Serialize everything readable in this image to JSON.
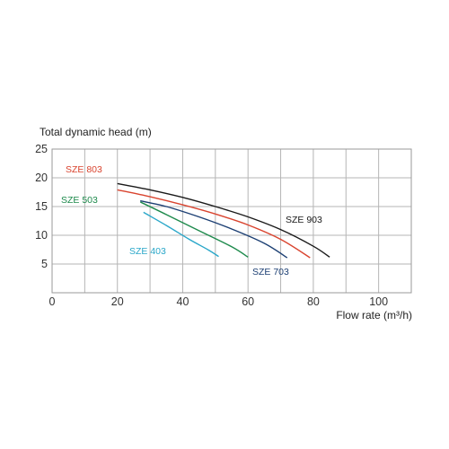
{
  "chart_data": {
    "type": "line",
    "ylabel": "Total dynamic head (m)",
    "xlabel": "Flow rate (m³/h)",
    "xlim": [
      0,
      110
    ],
    "ylim": [
      0,
      25
    ],
    "x_ticks": [
      0,
      20,
      40,
      60,
      80,
      100
    ],
    "y_ticks": [
      5,
      10,
      15,
      20,
      25
    ],
    "grid": true,
    "series": [
      {
        "name": "SZE 903",
        "color": "#1a1a1a",
        "points": [
          [
            20,
            19
          ],
          [
            30,
            17.9
          ],
          [
            40,
            16.6
          ],
          [
            50,
            15
          ],
          [
            60,
            13.2
          ],
          [
            70,
            11
          ],
          [
            80,
            8.1
          ],
          [
            85,
            6.2
          ]
        ]
      },
      {
        "name": "SZE 803",
        "color": "#d9442f",
        "points": [
          [
            20,
            17.9
          ],
          [
            30,
            16.7
          ],
          [
            40,
            15.3
          ],
          [
            50,
            13.7
          ],
          [
            60,
            11.8
          ],
          [
            70,
            9.3
          ],
          [
            79,
            6.1
          ]
        ]
      },
      {
        "name": "SZE 703",
        "color": "#1c3f73",
        "points": [
          [
            27,
            16
          ],
          [
            35,
            15
          ],
          [
            45,
            13.2
          ],
          [
            55,
            11.1
          ],
          [
            65,
            8.6
          ],
          [
            72,
            6.1
          ]
        ]
      },
      {
        "name": "SZE 503",
        "color": "#1e8a4c",
        "points": [
          [
            27,
            15.8
          ],
          [
            35,
            13.6
          ],
          [
            45,
            10.8
          ],
          [
            55,
            8
          ],
          [
            60,
            6.2
          ]
        ]
      },
      {
        "name": "SZE 403",
        "color": "#2aa7c9",
        "points": [
          [
            28,
            14
          ],
          [
            35,
            11.7
          ],
          [
            42,
            9.3
          ],
          [
            48,
            7.4
          ],
          [
            51,
            6.3
          ]
        ]
      }
    ]
  }
}
